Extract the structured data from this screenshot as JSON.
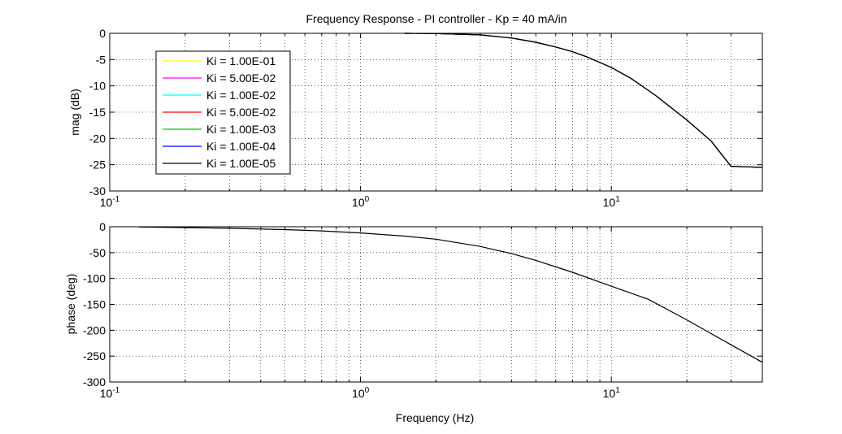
{
  "title": "Frequency Response - PI controller - Kp = 40 mA/in",
  "chart_data": [
    {
      "type": "line",
      "xscale": "log",
      "xlim": [
        0.1,
        40
      ],
      "ylim": [
        -30,
        0
      ],
      "yticks": [
        0,
        -5,
        -10,
        -15,
        -20,
        -25,
        -30
      ],
      "ylabel": "mag (dB)",
      "xlabel": "",
      "grid": true,
      "legend_position": "top-left",
      "series": [
        {
          "name": "Ki = 1.00E-01",
          "color": "#ffff00",
          "x": [
            1.5,
            2,
            3,
            4,
            5,
            6,
            7,
            8,
            10,
            12,
            15,
            20,
            25,
            30,
            35,
            40
          ],
          "y": [
            0,
            -0.05,
            -0.3,
            -0.9,
            -1.7,
            -2.6,
            -3.5,
            -4.5,
            -6.5,
            -8.6,
            -11.8,
            -16.5,
            -20.5,
            -25.3,
            -25.4,
            -25.5
          ]
        },
        {
          "name": "Ki = 5.00E-02",
          "color": "#ff00ff",
          "x": [
            1.5,
            2,
            3,
            4,
            5,
            6,
            7,
            8,
            10,
            12,
            15,
            20,
            25,
            30,
            35,
            40
          ],
          "y": [
            0,
            -0.05,
            -0.3,
            -0.9,
            -1.7,
            -2.6,
            -3.5,
            -4.5,
            -6.5,
            -8.6,
            -11.8,
            -16.5,
            -20.5,
            -25.3,
            -25.4,
            -25.5
          ]
        },
        {
          "name": "Ki = 1.00E-02",
          "color": "#00ffff",
          "x": [
            1.5,
            2,
            3,
            4,
            5,
            6,
            7,
            8,
            10,
            12,
            15,
            20,
            25,
            30,
            35,
            40
          ],
          "y": [
            0,
            -0.05,
            -0.3,
            -0.9,
            -1.7,
            -2.6,
            -3.5,
            -4.5,
            -6.5,
            -8.6,
            -11.8,
            -16.5,
            -20.5,
            -25.3,
            -25.4,
            -25.5
          ]
        },
        {
          "name": "Ki = 5.00E-02",
          "color": "#ff0000",
          "x": [
            1.5,
            2,
            3,
            4,
            5,
            6,
            7,
            8,
            10,
            12,
            15,
            20,
            25,
            30,
            35,
            40
          ],
          "y": [
            0,
            -0.05,
            -0.3,
            -0.9,
            -1.7,
            -2.6,
            -3.5,
            -4.5,
            -6.5,
            -8.6,
            -11.8,
            -16.5,
            -20.5,
            -25.3,
            -25.4,
            -25.5
          ]
        },
        {
          "name": "Ki = 1.00E-03",
          "color": "#00cc00",
          "x": [
            1.5,
            2,
            3,
            4,
            5,
            6,
            7,
            8,
            10,
            12,
            15,
            20,
            25,
            30,
            35,
            40
          ],
          "y": [
            0,
            -0.05,
            -0.3,
            -0.9,
            -1.7,
            -2.6,
            -3.5,
            -4.5,
            -6.5,
            -8.6,
            -11.8,
            -16.5,
            -20.5,
            -25.3,
            -25.4,
            -25.5
          ]
        },
        {
          "name": "Ki = 1.00E-04",
          "color": "#0000ff",
          "x": [
            1.5,
            2,
            3,
            4,
            5,
            6,
            7,
            8,
            10,
            12,
            15,
            20,
            25,
            30,
            35,
            40
          ],
          "y": [
            0,
            -0.05,
            -0.3,
            -0.9,
            -1.7,
            -2.6,
            -3.5,
            -4.5,
            -6.5,
            -8.6,
            -11.8,
            -16.5,
            -20.5,
            -25.3,
            -25.4,
            -25.5
          ]
        },
        {
          "name": "Ki = 1.00E-05",
          "color": "#000000",
          "x": [
            1.5,
            2,
            3,
            4,
            5,
            6,
            7,
            8,
            10,
            12,
            15,
            20,
            25,
            30,
            35,
            40
          ],
          "y": [
            0,
            -0.05,
            -0.3,
            -0.9,
            -1.7,
            -2.6,
            -3.5,
            -4.5,
            -6.5,
            -8.6,
            -11.8,
            -16.5,
            -20.5,
            -25.3,
            -25.4,
            -25.5
          ]
        }
      ]
    },
    {
      "type": "line",
      "xscale": "log",
      "xlim": [
        0.1,
        40
      ],
      "ylim": [
        -300,
        0
      ],
      "yticks": [
        0,
        -50,
        -100,
        -150,
        -200,
        -250,
        -300
      ],
      "ylabel": "phase (deg)",
      "xlabel": "Frequency (Hz)",
      "grid": true,
      "series": [
        {
          "color": "#000000",
          "x": [
            0.13,
            0.2,
            0.3,
            0.5,
            0.7,
            1,
            1.5,
            2,
            3,
            4,
            5,
            7,
            10,
            14,
            20,
            30,
            40
          ],
          "y": [
            -0.5,
            -1.5,
            -3,
            -5.5,
            -8,
            -12,
            -18,
            -24,
            -38,
            -52,
            -65,
            -88,
            -115,
            -140,
            -180,
            -228,
            -262
          ]
        }
      ]
    }
  ]
}
